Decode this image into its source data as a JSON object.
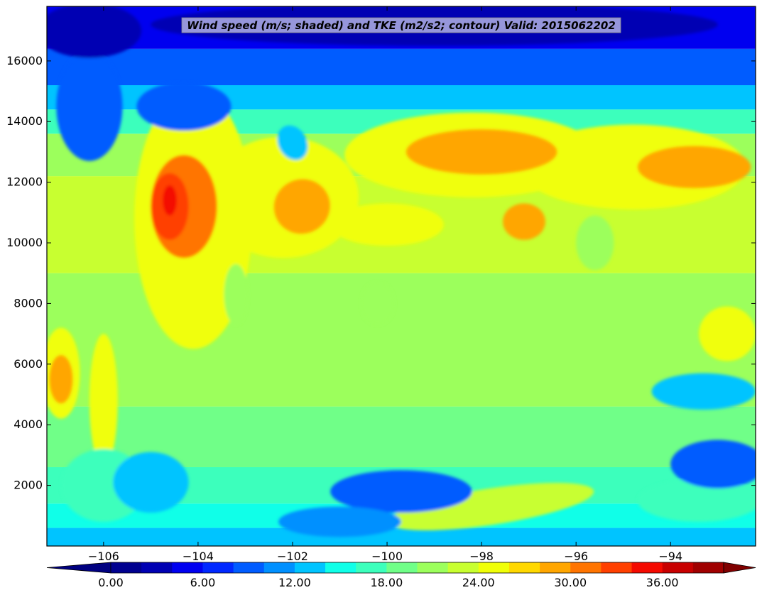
{
  "chart_data": {
    "type": "filled-contour",
    "title": "Wind speed (m/s; shaded) and TKE (m2/s2; contour) Valid: 2015062202",
    "xlabel": "",
    "ylabel": "",
    "xlim": [
      -107.2,
      -92.2
    ],
    "ylim": [
      0,
      17800
    ],
    "x_ticks": [
      -106,
      -104,
      -102,
      -100,
      -98,
      -96,
      -94
    ],
    "x_tick_labels": [
      "−106",
      "−104",
      "−102",
      "−100",
      "−98",
      "−96",
      "−94"
    ],
    "y_ticks": [
      2000,
      4000,
      6000,
      8000,
      10000,
      12000,
      14000,
      16000
    ],
    "y_tick_labels": [
      "2000",
      "4000",
      "6000",
      "8000",
      "10000",
      "12000",
      "14000",
      "16000"
    ],
    "grid": false,
    "colorbar": {
      "orientation": "horizontal",
      "placement": "bottom",
      "levels": [
        0,
        2,
        4,
        6,
        8,
        10,
        12,
        14,
        16,
        18,
        20,
        22,
        24,
        26,
        28,
        30,
        32,
        34,
        36,
        38,
        40
      ],
      "tick_values": [
        0,
        6,
        12,
        18,
        24,
        30,
        36
      ],
      "tick_labels": [
        "0.00",
        "6.00",
        "12.00",
        "18.00",
        "24.00",
        "30.00",
        "36.00"
      ],
      "extend": "both",
      "colors": [
        "#00008f",
        "#0000b3",
        "#0000f0",
        "#0028ff",
        "#005cff",
        "#0090ff",
        "#00c4ff",
        "#10ffe8",
        "#3cffbc",
        "#70ff88",
        "#9cff5c",
        "#c8ff30",
        "#f0ff08",
        "#ffd800",
        "#ffa600",
        "#ff7400",
        "#ff4000",
        "#f40a00",
        "#c80000",
        "#a00000"
      ],
      "under_color": "#000080",
      "over_color": "#800000"
    },
    "blobs": [
      {
        "x": -104.1,
        "y": 10800,
        "rx": 1.25,
        "ry": 4300,
        "level": 12,
        "rot": 0
      },
      {
        "x": -102.2,
        "y": 11500,
        "rx": 1.6,
        "ry": 2000,
        "level": 12,
        "rot": 0
      },
      {
        "x": -98.2,
        "y": 12900,
        "rx": 2.7,
        "ry": 1400,
        "level": 12,
        "rot": 0
      },
      {
        "x": -94.8,
        "y": 12500,
        "rx": 2.4,
        "ry": 1400,
        "level": 12,
        "rot": 0
      },
      {
        "x": -106.9,
        "y": 5700,
        "rx": 0.4,
        "ry": 1500,
        "level": 12,
        "rot": 0
      },
      {
        "x": -106.0,
        "y": 4800,
        "rx": 0.3,
        "ry": 2200,
        "level": 12,
        "rot": 0
      },
      {
        "x": -100.0,
        "y": 10600,
        "rx": 1.2,
        "ry": 700,
        "level": 12,
        "rot": 0
      },
      {
        "x": -92.8,
        "y": 7000,
        "rx": 0.6,
        "ry": 900,
        "level": 12,
        "rot": 0
      },
      {
        "x": -96.0,
        "y": 12500,
        "rx": 1.3,
        "ry": 900,
        "level": 12,
        "rot": 0
      },
      {
        "x": -104.3,
        "y": 11200,
        "rx": 0.7,
        "ry": 1700,
        "level": 15,
        "rot": 0
      },
      {
        "x": -101.8,
        "y": 11200,
        "rx": 0.6,
        "ry": 900,
        "level": 14,
        "rot": -0.4
      },
      {
        "x": -98.0,
        "y": 13000,
        "rx": 1.6,
        "ry": 750,
        "level": 14,
        "rot": 0
      },
      {
        "x": -93.5,
        "y": 12500,
        "rx": 1.2,
        "ry": 700,
        "level": 14,
        "rot": 0
      },
      {
        "x": -97.1,
        "y": 10700,
        "rx": 0.45,
        "ry": 600,
        "level": 14,
        "rot": 0
      },
      {
        "x": -106.9,
        "y": 5500,
        "rx": 0.25,
        "ry": 800,
        "level": 14,
        "rot": 0
      },
      {
        "x": -104.6,
        "y": 11200,
        "rx": 0.4,
        "ry": 1100,
        "level": 16,
        "rot": 0
      },
      {
        "x": -104.6,
        "y": 11400,
        "rx": 0.15,
        "ry": 500,
        "level": 17,
        "rot": 0
      },
      {
        "x": -100.2,
        "y": 8000,
        "rx": 0.35,
        "ry": 700,
        "level": 10,
        "rot": 0
      },
      {
        "x": -95.6,
        "y": 10000,
        "rx": 0.4,
        "ry": 900,
        "level": 10,
        "rot": 0
      },
      {
        "x": -103.2,
        "y": 8300,
        "rx": 0.25,
        "ry": 1000,
        "level": 10,
        "rot": 0
      },
      {
        "x": -93.3,
        "y": 5100,
        "rx": 1.1,
        "ry": 600,
        "level": 6,
        "rot": 0
      },
      {
        "x": -102.0,
        "y": 13300,
        "rx": 0.3,
        "ry": 600,
        "level": 6,
        "rot": -0.5
      },
      {
        "x": -106.0,
        "y": 2000,
        "rx": 0.9,
        "ry": 1200,
        "level": 8,
        "rot": 0
      },
      {
        "x": -105.0,
        "y": 2100,
        "rx": 0.8,
        "ry": 1000,
        "level": 6,
        "rot": 0
      },
      {
        "x": -97.8,
        "y": 1300,
        "rx": 2.2,
        "ry": 600,
        "level": 11,
        "rot": -0.15
      },
      {
        "x": -93.4,
        "y": 1500,
        "rx": 1.3,
        "ry": 700,
        "level": 8,
        "rot": 0
      },
      {
        "x": -99.7,
        "y": 1800,
        "rx": 1.5,
        "ry": 700,
        "level": 4,
        "rot": 0
      },
      {
        "x": -93.0,
        "y": 2700,
        "rx": 1.0,
        "ry": 800,
        "level": 4,
        "rot": 0
      },
      {
        "x": -101.0,
        "y": 800,
        "rx": 1.3,
        "ry": 500,
        "level": 5,
        "rot": 0
      },
      {
        "x": -106.3,
        "y": 14500,
        "rx": 0.7,
        "ry": 1800,
        "level": 4,
        "rot": 0
      },
      {
        "x": -104.3,
        "y": 14500,
        "rx": 1.0,
        "ry": 800,
        "level": 4,
        "rot": 0
      },
      {
        "x": -99.0,
        "y": 17200,
        "rx": 6.0,
        "ry": 700,
        "level": 1,
        "rot": 0
      },
      {
        "x": -106.3,
        "y": 17000,
        "rx": 1.1,
        "ry": 900,
        "level": 1,
        "rot": 0
      }
    ]
  }
}
